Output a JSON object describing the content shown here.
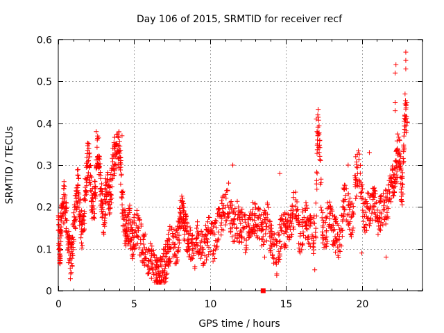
{
  "chart_data": {
    "type": "scatter",
    "title": "Day 106 of 2015, SRMTID for receiver recf",
    "xlabel": "GPS time / hours",
    "ylabel": "SRMTID / TECUs",
    "xlim": [
      0,
      24
    ],
    "ylim": [
      0,
      0.6
    ],
    "grid": true,
    "xticks": [
      0,
      5,
      10,
      15,
      20
    ],
    "xtick_labels": [
      "0",
      "5",
      "10",
      "15",
      "20"
    ],
    "yticks": [
      0,
      0.1,
      0.2,
      0.3,
      0.4,
      0.5,
      0.6
    ],
    "ytick_labels": [
      "0",
      "0.1",
      "0.2",
      "0.3",
      "0.4",
      "0.5",
      "0.6"
    ],
    "marker": "plus",
    "marker_color": "#ff0000",
    "series": [
      {
        "name": "SRMTID",
        "color": "#ff0000",
        "x": [
          0.0,
          0.05,
          0.1,
          0.15,
          0.2,
          0.3,
          0.4,
          0.5,
          0.6,
          0.7,
          0.8,
          0.9,
          1.0,
          1.1,
          1.2,
          1.3,
          1.4,
          1.5,
          1.6,
          1.7,
          1.8,
          1.9,
          2.0,
          2.1,
          2.2,
          2.3,
          2.4,
          2.5,
          2.6,
          2.7,
          2.8,
          2.9,
          3.0,
          3.1,
          3.2,
          3.3,
          3.4,
          3.5,
          3.6,
          3.7,
          3.8,
          3.9,
          4.0,
          4.1,
          4.2,
          4.3,
          4.4,
          4.5,
          4.6,
          4.7,
          4.8,
          4.9,
          5.0,
          5.2,
          5.4,
          5.6,
          5.8,
          6.0,
          6.2,
          6.4,
          6.5,
          6.6,
          6.7,
          6.8,
          6.9,
          7.0,
          7.1,
          7.2,
          7.3,
          7.5,
          7.7,
          7.9,
          8.0,
          8.1,
          8.2,
          8.3,
          8.4,
          8.5,
          8.6,
          8.8,
          9.0,
          9.2,
          9.4,
          9.6,
          9.8,
          10.0,
          10.2,
          10.4,
          10.6,
          10.8,
          11.0,
          11.2,
          11.4,
          11.6,
          11.8,
          12.0,
          12.2,
          12.4,
          12.6,
          12.8,
          13.0,
          13.2,
          13.4,
          13.6,
          13.8,
          14.0,
          14.2,
          14.4,
          14.6,
          14.8,
          15.0,
          15.2,
          15.4,
          15.6,
          15.8,
          16.0,
          16.2,
          16.4,
          16.6,
          16.8,
          17.0,
          17.1,
          17.2,
          17.4,
          17.6,
          17.8,
          18.0,
          18.2,
          18.4,
          18.6,
          18.8,
          19.0,
          19.2,
          19.4,
          19.6,
          19.8,
          20.0,
          20.2,
          20.4,
          20.6,
          20.8,
          21.0,
          21.2,
          21.4,
          21.6,
          21.8,
          22.0,
          22.1,
          22.2,
          22.3,
          22.4,
          22.5,
          22.6,
          22.7,
          22.8,
          22.9
        ],
        "y": [
          0.15,
          0.12,
          0.09,
          0.13,
          0.16,
          0.2,
          0.22,
          0.18,
          0.14,
          0.1,
          0.07,
          0.09,
          0.14,
          0.18,
          0.22,
          0.26,
          0.2,
          0.16,
          0.13,
          0.18,
          0.25,
          0.3,
          0.33,
          0.28,
          0.22,
          0.18,
          0.22,
          0.28,
          0.35,
          0.3,
          0.24,
          0.2,
          0.17,
          0.22,
          0.26,
          0.24,
          0.22,
          0.25,
          0.3,
          0.32,
          0.34,
          0.33,
          0.35,
          0.3,
          0.22,
          0.18,
          0.15,
          0.14,
          0.15,
          0.17,
          0.13,
          0.12,
          0.14,
          0.16,
          0.12,
          0.1,
          0.09,
          0.08,
          0.07,
          0.05,
          0.04,
          0.03,
          0.05,
          0.04,
          0.06,
          0.05,
          0.07,
          0.08,
          0.11,
          0.12,
          0.1,
          0.12,
          0.17,
          0.19,
          0.18,
          0.16,
          0.15,
          0.13,
          0.11,
          0.1,
          0.09,
          0.13,
          0.11,
          0.1,
          0.12,
          0.14,
          0.11,
          0.13,
          0.16,
          0.18,
          0.2,
          0.22,
          0.17,
          0.15,
          0.17,
          0.14,
          0.16,
          0.12,
          0.15,
          0.18,
          0.17,
          0.16,
          0.14,
          0.15,
          0.17,
          0.13,
          0.1,
          0.08,
          0.12,
          0.15,
          0.14,
          0.16,
          0.18,
          0.2,
          0.15,
          0.12,
          0.18,
          0.16,
          0.14,
          0.13,
          0.17,
          0.41,
          0.35,
          0.15,
          0.12,
          0.19,
          0.16,
          0.14,
          0.12,
          0.11,
          0.22,
          0.2,
          0.18,
          0.16,
          0.26,
          0.3,
          0.22,
          0.18,
          0.19,
          0.2,
          0.22,
          0.16,
          0.18,
          0.2,
          0.2,
          0.23,
          0.26,
          0.25,
          0.29,
          0.3,
          0.35,
          0.33,
          0.25,
          0.24,
          0.39,
          0.42
        ]
      }
    ],
    "extra_points": [
      {
        "x": 22.2,
        "y": 0.52
      },
      {
        "x": 22.25,
        "y": 0.54
      },
      {
        "x": 22.2,
        "y": 0.45
      },
      {
        "x": 22.2,
        "y": 0.43
      },
      {
        "x": 22.9,
        "y": 0.57
      },
      {
        "x": 22.9,
        "y": 0.55
      },
      {
        "x": 22.9,
        "y": 0.53
      },
      {
        "x": 22.85,
        "y": 0.47
      },
      {
        "x": 17.0,
        "y": 0.41
      },
      {
        "x": 17.1,
        "y": 0.42
      },
      {
        "x": 17.05,
        "y": 0.38
      },
      {
        "x": 17.1,
        "y": 0.37
      },
      {
        "x": 2.5,
        "y": 0.38
      },
      {
        "x": 4.2,
        "y": 0.37
      },
      {
        "x": 11.5,
        "y": 0.3
      },
      {
        "x": 14.6,
        "y": 0.28
      },
      {
        "x": 16.9,
        "y": 0.05
      },
      {
        "x": 14.4,
        "y": 0.04
      },
      {
        "x": 21.6,
        "y": 0.08
      },
      {
        "x": 13.6,
        "y": 0.08
      },
      {
        "x": 20.0,
        "y": 0.09
      },
      {
        "x": 19.1,
        "y": 0.3
      },
      {
        "x": 19.6,
        "y": 0.32
      },
      {
        "x": 20.5,
        "y": 0.33
      }
    ],
    "special_point": {
      "x": 13.5,
      "y": 0.0,
      "marker": "filled-square"
    }
  }
}
